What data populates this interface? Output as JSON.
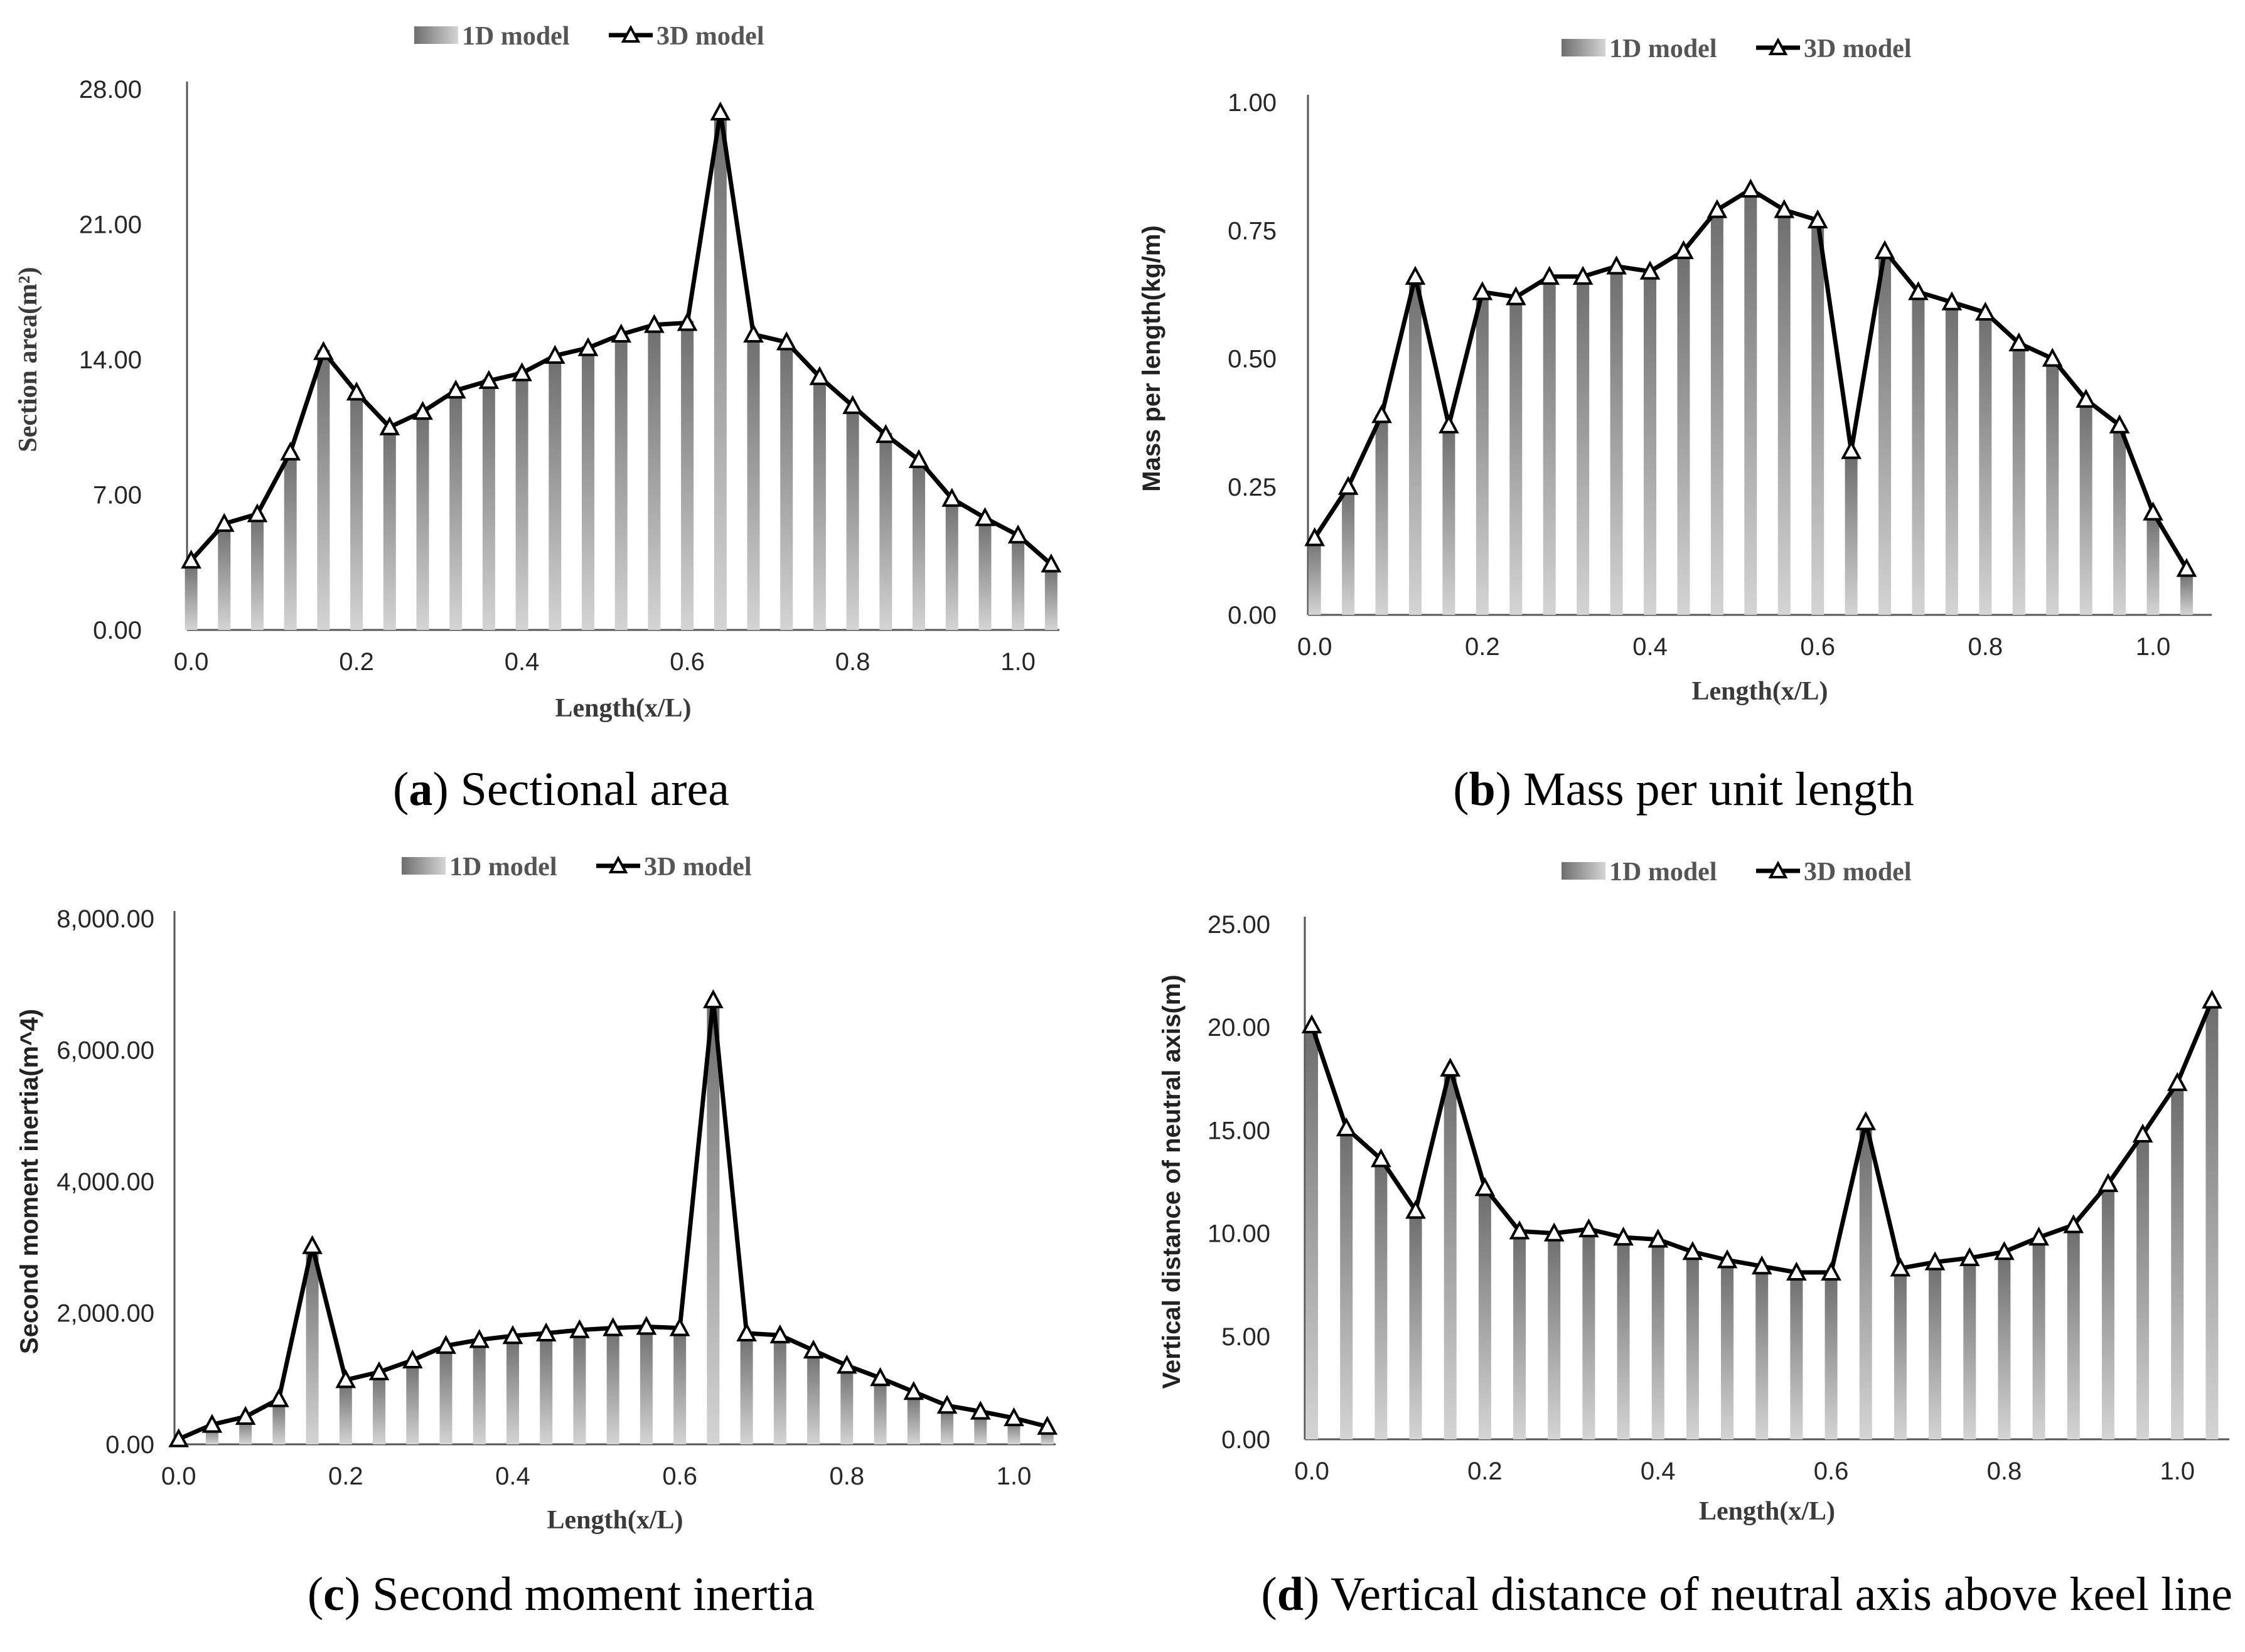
{
  "legend": {
    "bar_label": "1D model",
    "line_label": "3D model"
  },
  "x_ticks": [
    "0.0",
    "0.2",
    "0.4",
    "0.6",
    "0.8",
    "1.0"
  ],
  "x_axis_title": "Length(x/L)",
  "colors": {
    "bar_dark": "#6e6e6e",
    "bar_light": "#d4d4d4",
    "line": "#000000",
    "axis": "#555555"
  },
  "chart_data": [
    {
      "id": "a",
      "type": "bar+line",
      "caption_letter": "a",
      "caption_text": "Sectional area",
      "ylabel": "Section area(m²)",
      "xlabel": "Length(x/L)",
      "ylim": [
        0,
        28
      ],
      "y_ticks": [
        "0.00",
        "7.00",
        "14.00",
        "21.00",
        "28.00"
      ],
      "x": [
        0.0,
        0.04,
        0.08,
        0.12,
        0.16,
        0.2,
        0.24,
        0.28,
        0.32,
        0.36,
        0.4,
        0.44,
        0.48,
        0.52,
        0.56,
        0.6,
        0.64,
        0.68,
        0.72,
        0.76,
        0.8,
        0.84,
        0.88,
        0.92,
        0.96,
        1.0,
        1.04
      ],
      "series": [
        {
          "name": "1D model",
          "kind": "bar",
          "values": [
            3.4,
            5.4,
            6.0,
            9.2,
            14.5,
            12.3,
            10.5,
            11.4,
            12.5,
            13.0,
            13.4,
            14.2,
            14.7,
            15.3,
            15.8,
            16.0,
            26.8,
            15.3,
            14.9,
            13.1,
            11.6,
            10.2,
            8.7,
            6.8,
            5.8,
            4.9,
            3.3
          ]
        },
        {
          "name": "3D model",
          "kind": "line",
          "values": [
            3.6,
            5.5,
            6.0,
            9.2,
            14.4,
            12.3,
            10.5,
            11.3,
            12.4,
            12.9,
            13.3,
            14.2,
            14.6,
            15.3,
            15.8,
            15.9,
            26.8,
            15.3,
            14.9,
            13.1,
            11.6,
            10.1,
            8.8,
            6.8,
            5.8,
            4.9,
            3.4
          ]
        }
      ]
    },
    {
      "id": "b",
      "type": "bar+line",
      "caption_letter": "b",
      "caption_text": "Mass per unit length",
      "ylabel": "Mass per length(kg/m)",
      "xlabel": "Length(x/L)",
      "ylim": [
        0,
        1
      ],
      "y_ticks": [
        "0.00",
        "0.25",
        "0.50",
        "0.75",
        "1.00"
      ],
      "x": [
        0.0,
        0.04,
        0.08,
        0.12,
        0.16,
        0.2,
        0.24,
        0.28,
        0.32,
        0.36,
        0.4,
        0.44,
        0.48,
        0.52,
        0.56,
        0.6,
        0.64,
        0.68,
        0.72,
        0.76,
        0.8,
        0.84,
        0.88,
        0.92,
        0.96,
        1.0,
        1.04
      ],
      "series": [
        {
          "name": "1D model",
          "kind": "bar",
          "values": [
            0.15,
            0.25,
            0.39,
            0.66,
            0.37,
            0.63,
            0.62,
            0.66,
            0.66,
            0.68,
            0.67,
            0.71,
            0.79,
            0.83,
            0.79,
            0.77,
            0.31,
            0.71,
            0.63,
            0.61,
            0.59,
            0.53,
            0.5,
            0.42,
            0.37,
            0.2,
            0.08
          ]
        },
        {
          "name": "3D model",
          "kind": "line",
          "values": [
            0.15,
            0.25,
            0.39,
            0.66,
            0.37,
            0.63,
            0.62,
            0.66,
            0.66,
            0.68,
            0.67,
            0.71,
            0.79,
            0.83,
            0.79,
            0.77,
            0.32,
            0.71,
            0.63,
            0.61,
            0.59,
            0.53,
            0.5,
            0.42,
            0.37,
            0.2,
            0.09
          ]
        }
      ]
    },
    {
      "id": "c",
      "type": "bar+line",
      "caption_letter": "c",
      "caption_text": "Second moment inertia",
      "ylabel": "Second moment inertia(m^4)",
      "xlabel": "Length(x/L)",
      "ylim": [
        0,
        8000
      ],
      "y_ticks": [
        "0.00",
        "2,000.00",
        "4,000.00",
        "6,000.00",
        "8,000.00"
      ],
      "x": [
        0.0,
        0.04,
        0.08,
        0.12,
        0.16,
        0.2,
        0.24,
        0.28,
        0.32,
        0.36,
        0.4,
        0.44,
        0.48,
        0.52,
        0.56,
        0.6,
        0.64,
        0.68,
        0.72,
        0.76,
        0.8,
        0.84,
        0.88,
        0.92,
        0.96,
        1.0,
        1.04
      ],
      "series": [
        {
          "name": "1D model",
          "kind": "bar",
          "values": [
            60,
            280,
            400,
            650,
            3000,
            950,
            1080,
            1260,
            1480,
            1580,
            1640,
            1680,
            1720,
            1760,
            1780,
            1760,
            6750,
            1680,
            1660,
            1420,
            1190,
            1000,
            780,
            570,
            480,
            380,
            250
          ]
        },
        {
          "name": "3D model",
          "kind": "line",
          "values": [
            80,
            300,
            420,
            690,
            3020,
            980,
            1100,
            1280,
            1500,
            1590,
            1650,
            1690,
            1740,
            1770,
            1790,
            1770,
            6760,
            1690,
            1660,
            1430,
            1200,
            1010,
            800,
            590,
            500,
            400,
            270
          ]
        }
      ]
    },
    {
      "id": "d",
      "type": "bar+line",
      "caption_letter": "d",
      "caption_text": "Vertical distance of neutral axis above keel line",
      "ylabel": "Vertical distance of neutral axis(m)",
      "xlabel": "Length(x/L)",
      "ylim": [
        0,
        25
      ],
      "y_ticks": [
        "0.00",
        "5.00",
        "10.00",
        "15.00",
        "20.00",
        "25.00"
      ],
      "x": [
        0.0,
        0.04,
        0.08,
        0.12,
        0.16,
        0.2,
        0.24,
        0.28,
        0.32,
        0.36,
        0.4,
        0.44,
        0.48,
        0.52,
        0.56,
        0.6,
        0.64,
        0.68,
        0.72,
        0.76,
        0.8,
        0.84,
        0.88,
        0.92,
        0.96,
        1.0,
        1.04
      ],
      "series": [
        {
          "name": "1D model",
          "kind": "bar",
          "values": [
            19.9,
            15.0,
            13.4,
            11.0,
            17.8,
            12.0,
            10.0,
            9.9,
            10.0,
            9.6,
            9.5,
            9.0,
            8.6,
            8.3,
            8.0,
            7.9,
            15.2,
            8.2,
            8.5,
            8.7,
            9.0,
            9.6,
            10.2,
            12.2,
            14.6,
            17.0,
            21.1
          ]
        },
        {
          "name": "3D model",
          "kind": "line",
          "values": [
            20.1,
            15.1,
            13.6,
            11.1,
            18.0,
            12.2,
            10.1,
            10.0,
            10.2,
            9.8,
            9.7,
            9.1,
            8.7,
            8.4,
            8.1,
            8.1,
            15.4,
            8.3,
            8.6,
            8.8,
            9.1,
            9.8,
            10.4,
            12.4,
            14.8,
            17.3,
            21.3
          ]
        }
      ]
    }
  ]
}
